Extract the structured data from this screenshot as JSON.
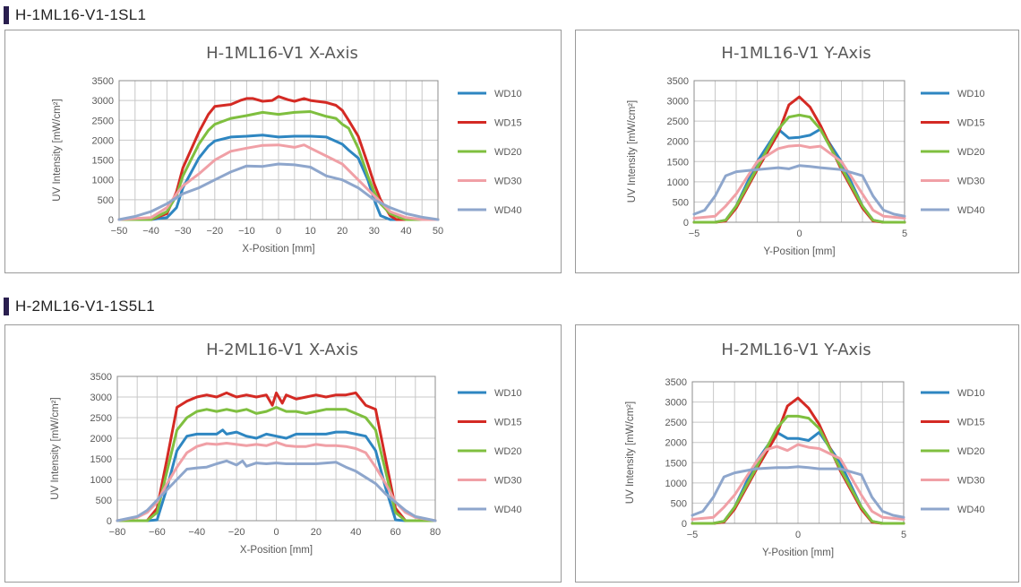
{
  "sections": [
    {
      "title": "H-1ML16-V1-1SL1"
    },
    {
      "title": "H-2ML16-V1-1S5L1"
    }
  ],
  "colors": {
    "WD10": "#2e86c1",
    "WD15": "#d42a24",
    "WD20": "#7fbf3f",
    "WD30": "#f0a0a6",
    "WD40": "#8ea6cc"
  },
  "chart_data": [
    {
      "type": "line",
      "title": "H-1ML16-V1 X-Axis",
      "xlabel": "X-Position [mm]",
      "ylabel": "UV Intensity [mW/cm²]",
      "xlim": [
        -50,
        50
      ],
      "ylim": [
        0,
        3500
      ],
      "xticks": [
        -50,
        -40,
        -30,
        -20,
        -10,
        0,
        10,
        20,
        30,
        40,
        50
      ],
      "yticks": [
        0,
        500,
        1000,
        1500,
        2000,
        2500,
        3000,
        3500
      ],
      "grid": true,
      "legend": "right",
      "series": [
        {
          "name": "WD10",
          "x": [
            -50,
            -40,
            -35,
            -32,
            -30,
            -25,
            -22,
            -20,
            -15,
            -10,
            -5,
            0,
            5,
            10,
            15,
            20,
            22,
            25,
            28,
            30,
            32,
            35,
            40,
            50
          ],
          "y": [
            0,
            0,
            50,
            300,
            800,
            1550,
            1850,
            1980,
            2080,
            2100,
            2130,
            2080,
            2100,
            2100,
            2080,
            1900,
            1750,
            1550,
            1000,
            500,
            100,
            0,
            0,
            0
          ]
        },
        {
          "name": "WD15",
          "x": [
            -50,
            -40,
            -35,
            -32,
            -30,
            -25,
            -22,
            -20,
            -15,
            -12,
            -10,
            -8,
            -5,
            -2,
            0,
            3,
            5,
            8,
            10,
            15,
            18,
            20,
            22,
            25,
            28,
            30,
            32,
            35,
            37,
            40,
            50
          ],
          "y": [
            0,
            0,
            150,
            700,
            1300,
            2200,
            2650,
            2850,
            2900,
            3000,
            3050,
            3050,
            2980,
            3000,
            3100,
            3020,
            2980,
            3050,
            3000,
            2950,
            2880,
            2750,
            2500,
            2100,
            1400,
            900,
            500,
            100,
            0,
            0,
            0
          ]
        },
        {
          "name": "WD20",
          "x": [
            -50,
            -40,
            -35,
            -32,
            -30,
            -25,
            -22,
            -20,
            -15,
            -10,
            -5,
            0,
            5,
            10,
            15,
            18,
            20,
            22,
            25,
            28,
            30,
            32,
            35,
            38,
            40,
            50
          ],
          "y": [
            0,
            0,
            200,
            600,
            1100,
            1900,
            2250,
            2400,
            2550,
            2620,
            2700,
            2650,
            2700,
            2720,
            2600,
            2550,
            2400,
            2300,
            1800,
            1100,
            700,
            400,
            150,
            50,
            0,
            0
          ]
        },
        {
          "name": "WD30",
          "x": [
            -50,
            -40,
            -35,
            -32,
            -30,
            -25,
            -20,
            -15,
            -10,
            -5,
            0,
            5,
            8,
            10,
            15,
            20,
            25,
            30,
            32,
            35,
            40,
            45,
            50
          ],
          "y": [
            0,
            50,
            300,
            650,
            850,
            1150,
            1500,
            1720,
            1800,
            1870,
            1880,
            1820,
            1880,
            1800,
            1600,
            1400,
            1000,
            600,
            450,
            200,
            50,
            0,
            0
          ]
        },
        {
          "name": "WD40",
          "x": [
            -50,
            -45,
            -40,
            -35,
            -30,
            -25,
            -20,
            -15,
            -10,
            -5,
            0,
            5,
            10,
            15,
            20,
            25,
            30,
            35,
            40,
            45,
            50
          ],
          "y": [
            0,
            80,
            200,
            400,
            650,
            800,
            1000,
            1200,
            1350,
            1340,
            1400,
            1380,
            1320,
            1100,
            1000,
            800,
            500,
            300,
            150,
            60,
            0
          ]
        }
      ]
    },
    {
      "type": "line",
      "title": "H-1ML16-V1 Y-Axis",
      "xlabel": "Y-Position [mm]",
      "ylabel": "UV Intensity [mW/cm²]",
      "xlim": [
        -5,
        5
      ],
      "ylim": [
        0,
        3500
      ],
      "xticks": [
        -5,
        0,
        5
      ],
      "yticks": [
        0,
        500,
        1000,
        1500,
        2000,
        2500,
        3000,
        3500
      ],
      "grid": true,
      "legend": "right",
      "series": [
        {
          "name": "WD10",
          "x": [
            -5,
            -4,
            -3.5,
            -3,
            -2,
            -1,
            -0.5,
            0,
            0.5,
            1,
            2,
            3,
            3.5,
            4,
            5
          ],
          "y": [
            0,
            0,
            50,
            400,
            1500,
            2300,
            2080,
            2100,
            2150,
            2300,
            1500,
            400,
            50,
            0,
            0
          ]
        },
        {
          "name": "WD15",
          "x": [
            -5,
            -4,
            -3.5,
            -3,
            -2,
            -1,
            -0.5,
            0,
            0.5,
            1,
            2,
            3,
            3.5,
            4,
            5
          ],
          "y": [
            0,
            0,
            30,
            350,
            1300,
            2200,
            2900,
            3100,
            2850,
            2400,
            1300,
            350,
            30,
            0,
            0
          ]
        },
        {
          "name": "WD20",
          "x": [
            -5,
            -4,
            -3.5,
            -3,
            -2,
            -1,
            -0.5,
            0,
            0.5,
            1,
            2,
            3,
            3.5,
            4,
            5
          ],
          "y": [
            0,
            0,
            50,
            400,
            1350,
            2300,
            2600,
            2650,
            2600,
            2300,
            1350,
            400,
            50,
            0,
            0
          ]
        },
        {
          "name": "WD30",
          "x": [
            -5,
            -4,
            -3.5,
            -3,
            -2,
            -1,
            -0.5,
            0,
            0.5,
            1,
            2,
            3,
            3.5,
            4,
            5
          ],
          "y": [
            100,
            150,
            400,
            700,
            1500,
            1820,
            1880,
            1900,
            1850,
            1880,
            1500,
            700,
            300,
            150,
            100
          ]
        },
        {
          "name": "WD40",
          "x": [
            -5,
            -4.5,
            -4,
            -3.5,
            -3,
            -2,
            -1,
            -0.5,
            0,
            0.5,
            1,
            2,
            3,
            3.5,
            4,
            4.5,
            5
          ],
          "y": [
            200,
            300,
            650,
            1150,
            1250,
            1300,
            1350,
            1320,
            1400,
            1380,
            1350,
            1300,
            1150,
            650,
            300,
            200,
            150
          ]
        }
      ]
    },
    {
      "type": "line",
      "title": "H-2ML16-V1 X-Axis",
      "xlabel": "X-Position [mm]",
      "ylabel": "UV Intensity [mW/cm²]",
      "xlim": [
        -80,
        80
      ],
      "ylim": [
        0,
        3500
      ],
      "xticks": [
        -80,
        -60,
        -40,
        -20,
        0,
        20,
        40,
        60,
        80
      ],
      "yticks": [
        0,
        500,
        1000,
        1500,
        2000,
        2500,
        3000,
        3500
      ],
      "grid": true,
      "legend": "right",
      "series": [
        {
          "name": "WD10",
          "x": [
            -80,
            -65,
            -60,
            -55,
            -50,
            -45,
            -40,
            -35,
            -30,
            -27,
            -25,
            -20,
            -15,
            -10,
            -5,
            0,
            5,
            10,
            15,
            20,
            25,
            30,
            35,
            40,
            45,
            50,
            55,
            60,
            65,
            80
          ],
          "y": [
            0,
            0,
            20,
            800,
            1700,
            2050,
            2100,
            2100,
            2100,
            2200,
            2100,
            2150,
            2050,
            2000,
            2100,
            2050,
            2000,
            2100,
            2100,
            2100,
            2100,
            2150,
            2150,
            2100,
            2050,
            1700,
            800,
            20,
            0,
            0
          ]
        },
        {
          "name": "WD15",
          "x": [
            -80,
            -65,
            -60,
            -55,
            -50,
            -45,
            -40,
            -35,
            -30,
            -25,
            -20,
            -15,
            -10,
            -5,
            -2,
            0,
            3,
            5,
            10,
            15,
            20,
            25,
            30,
            35,
            40,
            45,
            50,
            55,
            60,
            65,
            80
          ],
          "y": [
            0,
            0,
            300,
            1500,
            2750,
            2900,
            3000,
            3050,
            3000,
            3100,
            3000,
            3050,
            3000,
            3050,
            2800,
            3100,
            2850,
            3050,
            2950,
            3000,
            3050,
            3000,
            3050,
            3050,
            3100,
            2800,
            2700,
            1500,
            300,
            0,
            0
          ]
        },
        {
          "name": "WD20",
          "x": [
            -80,
            -65,
            -60,
            -55,
            -50,
            -45,
            -40,
            -35,
            -30,
            -25,
            -20,
            -15,
            -10,
            -5,
            0,
            5,
            10,
            15,
            20,
            25,
            30,
            35,
            40,
            45,
            50,
            55,
            60,
            65,
            80
          ],
          "y": [
            0,
            0,
            200,
            1200,
            2200,
            2500,
            2650,
            2700,
            2650,
            2700,
            2650,
            2700,
            2600,
            2650,
            2750,
            2650,
            2650,
            2600,
            2650,
            2700,
            2700,
            2700,
            2600,
            2500,
            2200,
            1200,
            200,
            0,
            0
          ]
        },
        {
          "name": "WD30",
          "x": [
            -80,
            -70,
            -65,
            -60,
            -55,
            -50,
            -45,
            -40,
            -35,
            -30,
            -25,
            -20,
            -15,
            -10,
            -5,
            0,
            5,
            10,
            15,
            20,
            25,
            30,
            35,
            40,
            45,
            50,
            55,
            60,
            65,
            70,
            80
          ],
          "y": [
            0,
            80,
            200,
            450,
            900,
            1300,
            1650,
            1800,
            1870,
            1850,
            1880,
            1850,
            1820,
            1850,
            1820,
            1900,
            1820,
            1800,
            1800,
            1850,
            1820,
            1820,
            1800,
            1750,
            1650,
            1300,
            900,
            450,
            200,
            80,
            0
          ]
        },
        {
          "name": "WD40",
          "x": [
            -80,
            -70,
            -65,
            -60,
            -55,
            -50,
            -45,
            -40,
            -35,
            -30,
            -25,
            -20,
            -17,
            -15,
            -10,
            -5,
            0,
            5,
            10,
            15,
            20,
            25,
            30,
            35,
            40,
            45,
            50,
            55,
            60,
            65,
            70,
            80
          ],
          "y": [
            0,
            100,
            250,
            500,
            750,
            1000,
            1250,
            1280,
            1300,
            1380,
            1450,
            1350,
            1450,
            1320,
            1400,
            1380,
            1400,
            1380,
            1380,
            1380,
            1380,
            1400,
            1420,
            1300,
            1200,
            1050,
            900,
            650,
            450,
            250,
            100,
            0
          ]
        }
      ]
    },
    {
      "type": "line",
      "title": "H-2ML16-V1 Y-Axis",
      "xlabel": "Y-Position [mm]",
      "ylabel": "UV Intensity [mW/cm²]",
      "xlim": [
        -5,
        5
      ],
      "ylim": [
        0,
        3500
      ],
      "xticks": [
        -5,
        0,
        5
      ],
      "yticks": [
        0,
        500,
        1000,
        1500,
        2000,
        2500,
        3000,
        3500
      ],
      "grid": true,
      "legend": "right",
      "series": [
        {
          "name": "WD10",
          "x": [
            -5,
            -4,
            -3.5,
            -3,
            -2,
            -1,
            -0.5,
            0,
            0.5,
            1,
            2,
            3,
            3.5,
            4,
            5
          ],
          "y": [
            0,
            0,
            50,
            400,
            1500,
            2250,
            2100,
            2100,
            2050,
            2250,
            1500,
            400,
            50,
            0,
            0
          ]
        },
        {
          "name": "WD15",
          "x": [
            -5,
            -4,
            -3.5,
            -3,
            -2,
            -1,
            -0.5,
            0,
            0.5,
            1,
            2,
            3,
            3.5,
            4,
            5
          ],
          "y": [
            0,
            0,
            30,
            350,
            1300,
            2200,
            2900,
            3100,
            2850,
            2450,
            1300,
            350,
            30,
            0,
            0
          ]
        },
        {
          "name": "WD20",
          "x": [
            -5,
            -4,
            -3.5,
            -3,
            -2,
            -1,
            -0.5,
            0,
            0.5,
            1,
            2,
            3,
            3.5,
            4,
            5
          ],
          "y": [
            0,
            0,
            50,
            400,
            1350,
            2350,
            2650,
            2650,
            2600,
            2350,
            1350,
            400,
            50,
            0,
            0
          ]
        },
        {
          "name": "WD30",
          "x": [
            -5,
            -4,
            -3.5,
            -3,
            -2,
            -1.5,
            -1,
            -0.5,
            0,
            0.5,
            1,
            2,
            3,
            3.5,
            4,
            5
          ],
          "y": [
            100,
            150,
            400,
            700,
            1500,
            1820,
            1900,
            1800,
            1950,
            1880,
            1850,
            1600,
            700,
            300,
            150,
            100
          ]
        },
        {
          "name": "WD40",
          "x": [
            -5,
            -4.5,
            -4,
            -3.5,
            -3,
            -2,
            -1,
            -0.5,
            0,
            0.5,
            1,
            2,
            3,
            3.5,
            4,
            4.5,
            5
          ],
          "y": [
            200,
            300,
            650,
            1150,
            1250,
            1350,
            1380,
            1380,
            1400,
            1380,
            1350,
            1350,
            1200,
            650,
            300,
            200,
            150
          ]
        }
      ]
    }
  ]
}
